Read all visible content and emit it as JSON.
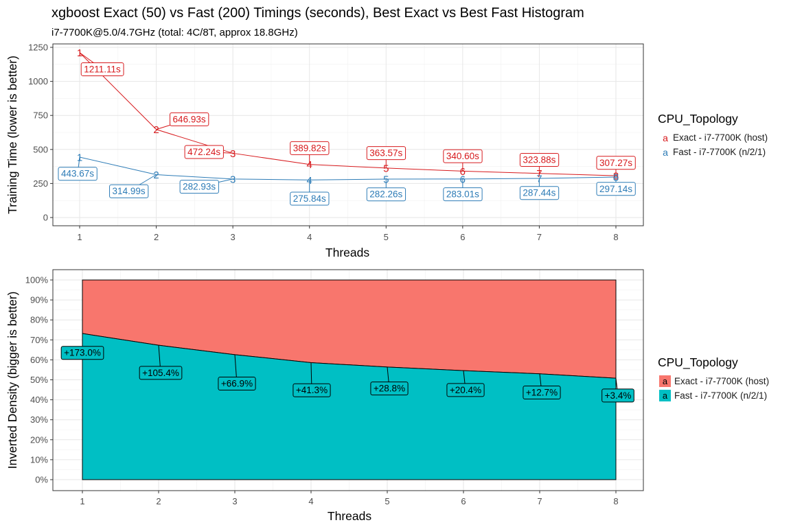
{
  "title": "xgboost Exact (50) vs Fast (200) Timings (seconds), Best Exact vs Best Fast Histogram",
  "subtitle": "i7-7700K@5.0/4.7GHz (total: 4C/8T, approx 18.8GHz)",
  "colors": {
    "exact_line": "#d7191c",
    "fast_line": "#2c7bb6",
    "exact_fill": "#f8766d",
    "fast_fill": "#00bfc4"
  },
  "chart_data": [
    {
      "type": "line",
      "xlabel": "Threads",
      "ylabel": "Training Time (lower is better)",
      "x": [
        1,
        2,
        3,
        4,
        5,
        6,
        7,
        8
      ],
      "xlim": [
        1,
        8
      ],
      "ylim": [
        0,
        1250
      ],
      "yticks": [
        0,
        250,
        500,
        750,
        1000,
        1250
      ],
      "xticks": [
        1,
        2,
        3,
        4,
        5,
        6,
        7,
        8
      ],
      "grid": true,
      "legend": {
        "title": "CPU_Topology",
        "placement": "right",
        "key_glyph": "a"
      },
      "series": [
        {
          "name": "Exact - i7-7700K (host)",
          "values": [
            1211.11,
            646.93,
            472.24,
            389.82,
            363.57,
            340.6,
            323.88,
            307.27
          ],
          "labels": [
            "1211.11s",
            "646.93s",
            "472.24s",
            "389.82s",
            "363.57s",
            "340.60s",
            "323.88s",
            "307.27s"
          ],
          "point_labels": [
            "1",
            "2",
            "3",
            "4",
            "5",
            "6",
            "7",
            "8"
          ]
        },
        {
          "name": "Fast - i7-7700K (n/2/1)",
          "values": [
            443.67,
            314.99,
            282.93,
            275.84,
            282.26,
            283.01,
            287.44,
            297.14
          ],
          "labels": [
            "443.67s",
            "314.99s",
            "282.93s",
            "275.84s",
            "282.26s",
            "283.01s",
            "287.44s",
            "297.14s"
          ],
          "point_labels": [
            "1",
            "2",
            "3",
            "4",
            "5",
            "6",
            "7",
            "8"
          ]
        }
      ]
    },
    {
      "type": "area",
      "stacked": "fill",
      "xlabel": "Threads",
      "ylabel": "Inverted Density (bigger is better)",
      "x": [
        1,
        2,
        3,
        4,
        5,
        6,
        7,
        8
      ],
      "xticks": [
        1,
        2,
        3,
        4,
        5,
        6,
        7,
        8
      ],
      "ylim": [
        0,
        100
      ],
      "yticks": [
        "0%",
        "10%",
        "20%",
        "30%",
        "40%",
        "50%",
        "60%",
        "70%",
        "80%",
        "90%",
        "100%"
      ],
      "grid": true,
      "legend": {
        "title": "CPU_Topology",
        "placement": "right",
        "key_glyph": "a"
      },
      "series": [
        {
          "name": "Exact - i7-7700K (host)",
          "values": [
            26.8,
            32.7,
            37.4,
            41.4,
            43.6,
            45.4,
            47.0,
            49.2
          ]
        },
        {
          "name": "Fast - i7-7700K (n/2/1)",
          "values": [
            73.2,
            67.3,
            62.6,
            58.6,
            56.4,
            54.6,
            53.0,
            50.8
          ]
        }
      ],
      "labels": [
        "+173.0%",
        "+105.4%",
        "+66.9%",
        "+41.3%",
        "+28.8%",
        "+20.4%",
        "+12.7%",
        "+3.4%"
      ]
    }
  ]
}
